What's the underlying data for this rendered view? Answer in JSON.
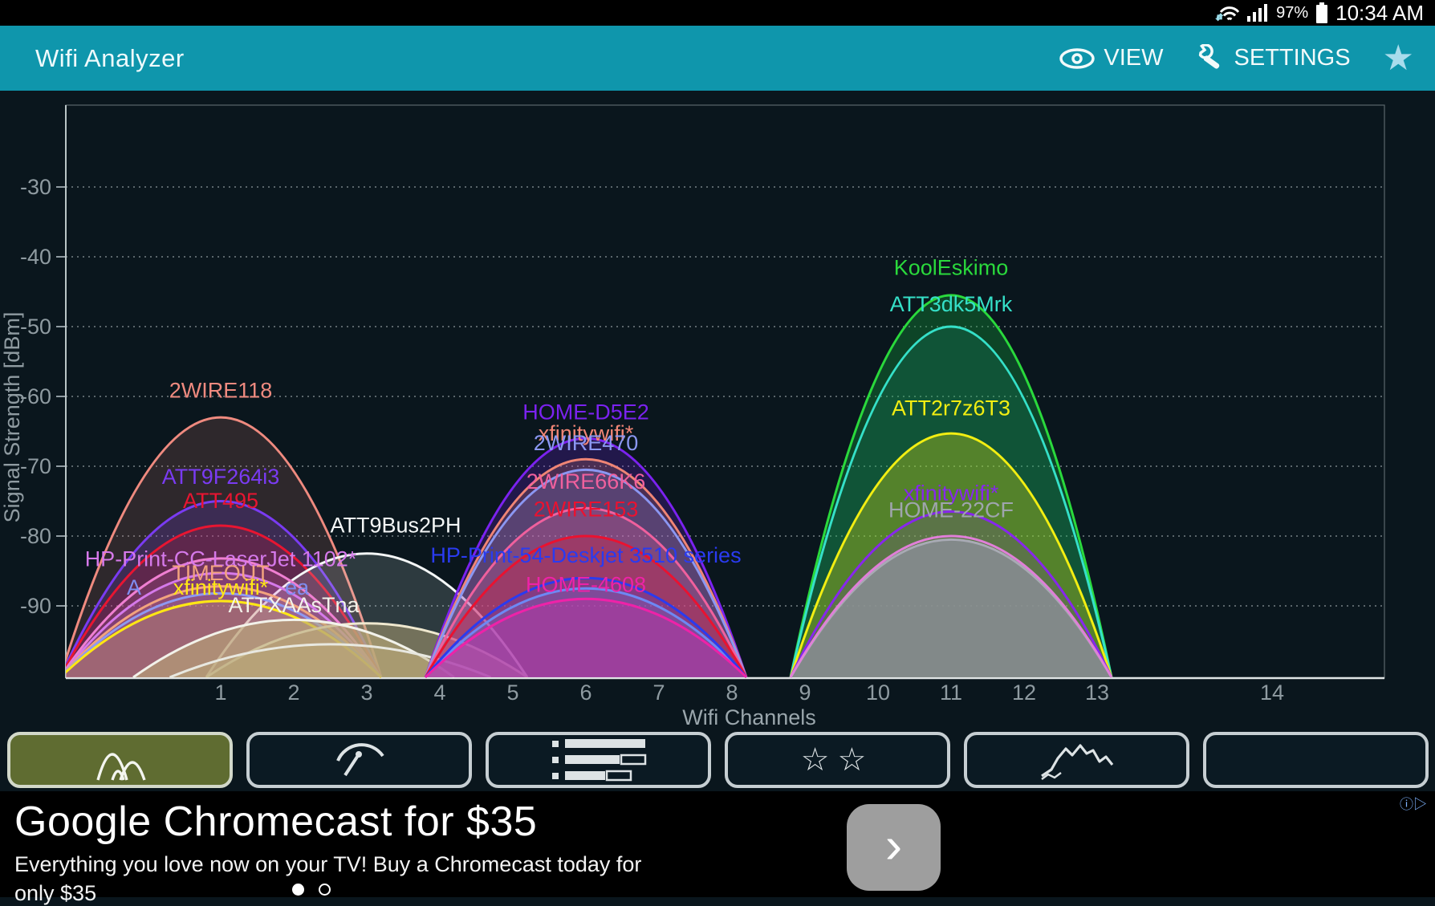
{
  "colors": {
    "app_bar": "#0f96ac",
    "background": "#0a161d",
    "grid": "#cfd8da",
    "axis_text": "#8f9ba1",
    "selected_tab": "#5f6c31"
  },
  "status_bar": {
    "battery_percent": "97%",
    "time": "10:34 AM"
  },
  "app_bar": {
    "title": "Wifi Analyzer",
    "view_label": "VIEW",
    "settings_label": "SETTINGS",
    "favorite_icon": "★"
  },
  "chart_data": {
    "type": "area",
    "title": "",
    "xlabel": "Wifi Channels",
    "ylabel": "Signal Strength [dBm]",
    "x_ticks": [
      1,
      2,
      3,
      4,
      5,
      6,
      7,
      8,
      9,
      10,
      11,
      12,
      13,
      14
    ],
    "y_ticks": [
      -30,
      -40,
      -50,
      -60,
      -70,
      -80,
      -90
    ],
    "ylim": [
      -100,
      -20
    ],
    "grid": true,
    "series": [
      {
        "ssid": "2WIRE118",
        "channel": 1,
        "level": -63,
        "label_dbm": -60.2,
        "color": "#ef8a7f",
        "fill_alpha": 0.16
      },
      {
        "ssid": "ATT9F264i3",
        "channel": 1,
        "level": -75,
        "label_dbm": -72.5,
        "color": "#7a3bf2",
        "fill_alpha": 0.2
      },
      {
        "ssid": "ATT495",
        "channel": 1,
        "level": -78.5,
        "label_dbm": -76,
        "color": "#e81531",
        "fill_alpha": 0.2
      },
      {
        "ssid": "ATT9Bus2PH",
        "channel": 3,
        "level": -82.5,
        "label_dbm": -79.5,
        "label_dx": 36,
        "color": "#f4f7f7",
        "fill_color": "#cfe0e0",
        "fill_alpha": 0.18
      },
      {
        "ssid": "",
        "channel": 1,
        "level": -83.2,
        "color": "#ef7fd2",
        "fill_alpha": 0.15
      },
      {
        "ssid": "HP-Print-CC-LaserJet 1102*",
        "channel": 1,
        "level": -85.3,
        "label_dbm": -84.3,
        "color": "#d579ea",
        "fill_alpha": 0.15
      },
      {
        "ssid": "TIMEOUT",
        "channel": 1,
        "level": -87.2,
        "label_dbm": -86.3,
        "color": "#f2a37e",
        "fill_alpha": 0.15
      },
      {
        "ssid": "",
        "channel": 1,
        "level": -88.2,
        "color": "#8e98f2",
        "fill_alpha": 0.12
      },
      {
        "ssid": "xfinitywifi*",
        "channel": 1,
        "level": -89.3,
        "label_dbm": -88.4,
        "color": "#ffe714",
        "fill_alpha": 0.12,
        "underlay": {
          "left": "A",
          "right": "ea",
          "color": "#7f8df0"
        }
      },
      {
        "ssid": "",
        "channel": 3,
        "level": -92.5,
        "color": "#efe8cf",
        "fill_color": "#b9a878",
        "fill_alpha": 0.5
      },
      {
        "ssid": "ATTXAAsTna",
        "channel": 2,
        "level": -92,
        "label_dbm": -90.9,
        "color": "#f2f2ea",
        "fill_color": "#b9a878",
        "fill_alpha": 0.6
      },
      {
        "ssid": "",
        "channel": 2.5,
        "level": -95.5,
        "color": "#e8e8e0",
        "fill_color": "#b9a878",
        "fill_alpha": 0.4
      },
      {
        "ssid": "HOME-D5E2",
        "channel": 6,
        "level": -66,
        "label_dbm": -63.3,
        "color": "#7b22f0",
        "fill_alpha": 0.22
      },
      {
        "ssid": "xfinitywifi*",
        "channel": 6,
        "level": -69,
        "label_dbm": -66.3,
        "color": "#f08575",
        "fill_alpha": 0.2
      },
      {
        "ssid": "2WIRE470",
        "channel": 6,
        "level": -70.5,
        "label_dbm": -67.7,
        "color": "#8b97f2",
        "fill_alpha": 0.2
      },
      {
        "ssid": "2WIRE66K6",
        "channel": 6,
        "level": -76,
        "label_dbm": -73.2,
        "color": "#f0609d",
        "fill_alpha": 0.26
      },
      {
        "ssid": "2WIRE153",
        "channel": 6,
        "level": -80,
        "label_dbm": -77.2,
        "color": "#ea1230",
        "fill_alpha": 0.26
      },
      {
        "ssid": "",
        "channel": 6,
        "level": -87.5,
        "color": "#7f9cf5",
        "fill_alpha": 0.2
      },
      {
        "ssid": "HP-Print-54-Deskjet 3510 series",
        "channel": 6,
        "level": -86,
        "label_dbm": -83.8,
        "color": "#2a3bf0",
        "fill_alpha": 0.2
      },
      {
        "ssid": "HOME-4608",
        "channel": 6,
        "level": -89,
        "label_dbm": -88,
        "color": "#ee22a8",
        "fill_alpha": 0.26
      },
      {
        "ssid": "KoolEskimo",
        "channel": 11,
        "level": -45.5,
        "label_dbm": -42.6,
        "color": "#2ad93c",
        "fill_color": "#14a03c",
        "fill_alpha": 0.34
      },
      {
        "ssid": "ATT3dk5Mrk",
        "channel": 11,
        "level": -50,
        "label_dbm": -47.8,
        "color": "#35e0c8",
        "fill_alpha": 0.1
      },
      {
        "ssid": "ATT2r7z6T3",
        "channel": 11,
        "level": -65.3,
        "label_dbm": -62.7,
        "color": "#f2ee12",
        "fill_alpha": 0.3
      },
      {
        "ssid": "xfinitywifi*",
        "channel": 11,
        "level": -76.5,
        "label_dbm": -74.9,
        "color": "#8726ee",
        "fill_alpha": 0.15
      },
      {
        "ssid": "HOME-22CF",
        "channel": 11,
        "level": -80.5,
        "label_dbm": -77.3,
        "color": "#a8aab4",
        "label_color": "#9fa5ad",
        "fill_color": "#8c8e9a",
        "fill_alpha": 0.8
      },
      {
        "ssid": "",
        "channel": 11,
        "level": -80,
        "color": "#e07fd8",
        "fill_alpha": 0
      }
    ]
  },
  "toolbar": {
    "tabs": [
      {
        "name": "channel-graph",
        "icon": "parabolas",
        "selected": true
      },
      {
        "name": "signal-meter",
        "icon": "gauge",
        "selected": false
      },
      {
        "name": "ap-list",
        "icon": "list",
        "selected": false
      },
      {
        "name": "channel-rating",
        "icon": "stars",
        "selected": false
      },
      {
        "name": "time-graph",
        "icon": "squiggle",
        "selected": false
      },
      {
        "name": "blank",
        "icon": "",
        "selected": false
      }
    ],
    "stars_glyph": "☆☆"
  },
  "ad": {
    "headline": "Google Chromecast for $35",
    "body": "Everything you love now on your TV! Buy a Chromecast today for",
    "body_cut": "only $35",
    "next_label": "›",
    "adchoices_glyph": "ⓘ▷",
    "page_dots": {
      "count": 2,
      "active": 0
    }
  }
}
